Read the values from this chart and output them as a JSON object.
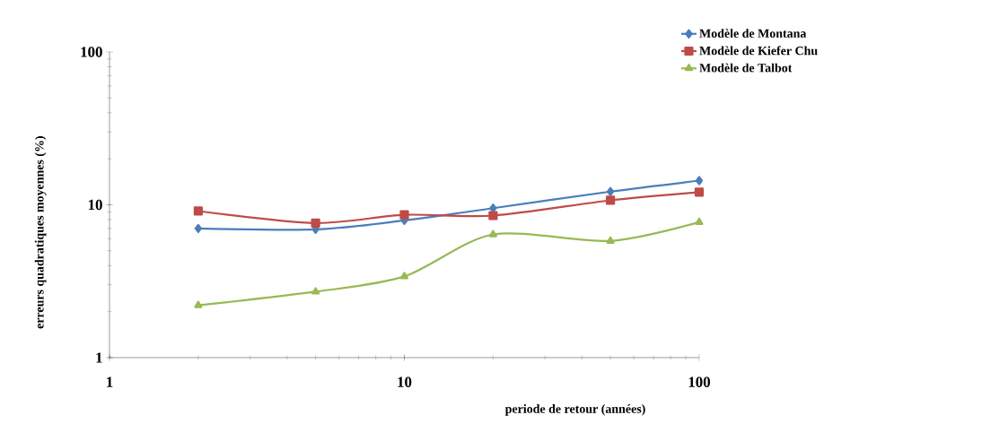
{
  "chart_data": {
    "type": "line",
    "xlabel": "periode de retour (années)",
    "ylabel": "erreurs quadratiques moyennes (%)",
    "x": [
      2,
      5,
      10,
      20,
      50,
      100
    ],
    "series": [
      {
        "name": "Modèle de Montana",
        "color": "#4a7ebb",
        "marker": "diamond",
        "values": [
          7.0,
          6.9,
          7.9,
          9.5,
          12.2,
          14.4
        ]
      },
      {
        "name": "Modèle de Kiefer Chu",
        "color": "#be4b48",
        "marker": "square",
        "values": [
          9.1,
          7.6,
          8.6,
          8.5,
          10.7,
          12.1
        ]
      },
      {
        "name": "Modèle de Talbot",
        "color": "#98b954",
        "marker": "triangle",
        "values": [
          2.2,
          2.7,
          3.4,
          6.4,
          5.8,
          7.7
        ]
      }
    ],
    "log": "xy",
    "xlim": [
      1,
      100
    ],
    "ylim": [
      1,
      100
    ],
    "xticks": [
      1,
      10,
      100
    ],
    "yticks": [
      1,
      10,
      100
    ],
    "legend": "top right",
    "line_style": "solid"
  }
}
